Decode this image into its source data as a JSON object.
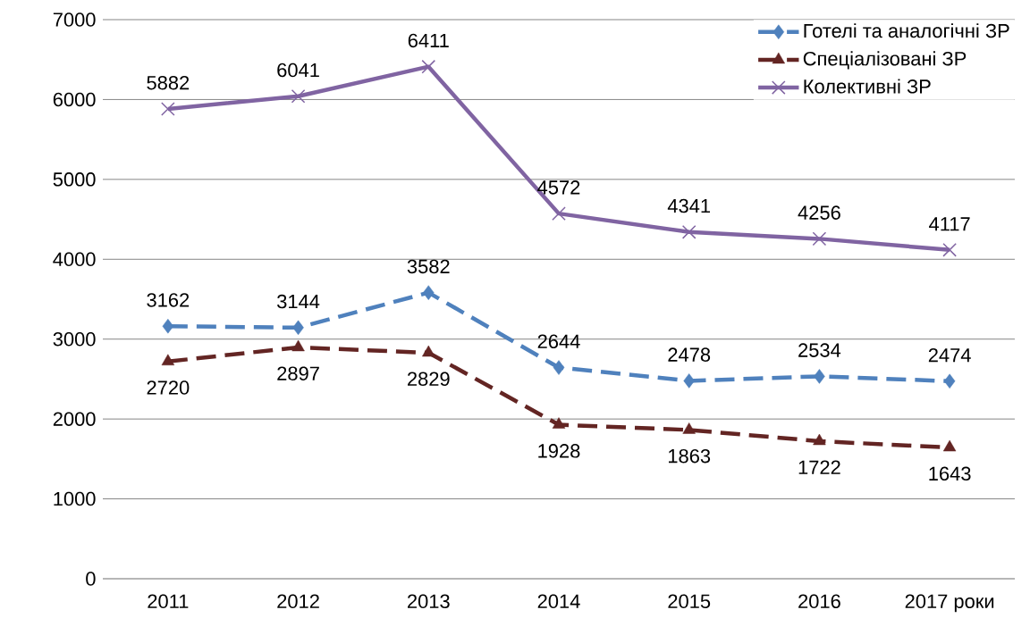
{
  "chart_data": {
    "type": "line",
    "categories": [
      "2011",
      "2012",
      "2013",
      "2014",
      "2015",
      "2016",
      "2017 роки"
    ],
    "series": [
      {
        "name": "Готелі та аналогічні ЗР",
        "color": "#4f81bd",
        "marker": "diamond",
        "line_style": "dashed",
        "values": [
          3162,
          3144,
          3582,
          2644,
          2478,
          2534,
          2474
        ]
      },
      {
        "name": "Спеціалізовані ЗР",
        "color": "#632523",
        "marker": "triangle",
        "line_style": "dashed",
        "values": [
          2720,
          2897,
          2829,
          1928,
          1863,
          1722,
          1643
        ]
      },
      {
        "name": "Колективні ЗР",
        "color": "#8064a2",
        "marker": "cross",
        "line_style": "solid",
        "values": [
          5882,
          6041,
          6411,
          4572,
          4341,
          4256,
          4117
        ]
      }
    ],
    "ylim": [
      0,
      7000
    ],
    "yticks": [
      0,
      1000,
      2000,
      3000,
      4000,
      5000,
      6000,
      7000
    ],
    "grid": "y",
    "legend": "top right",
    "data_labels": true
  }
}
